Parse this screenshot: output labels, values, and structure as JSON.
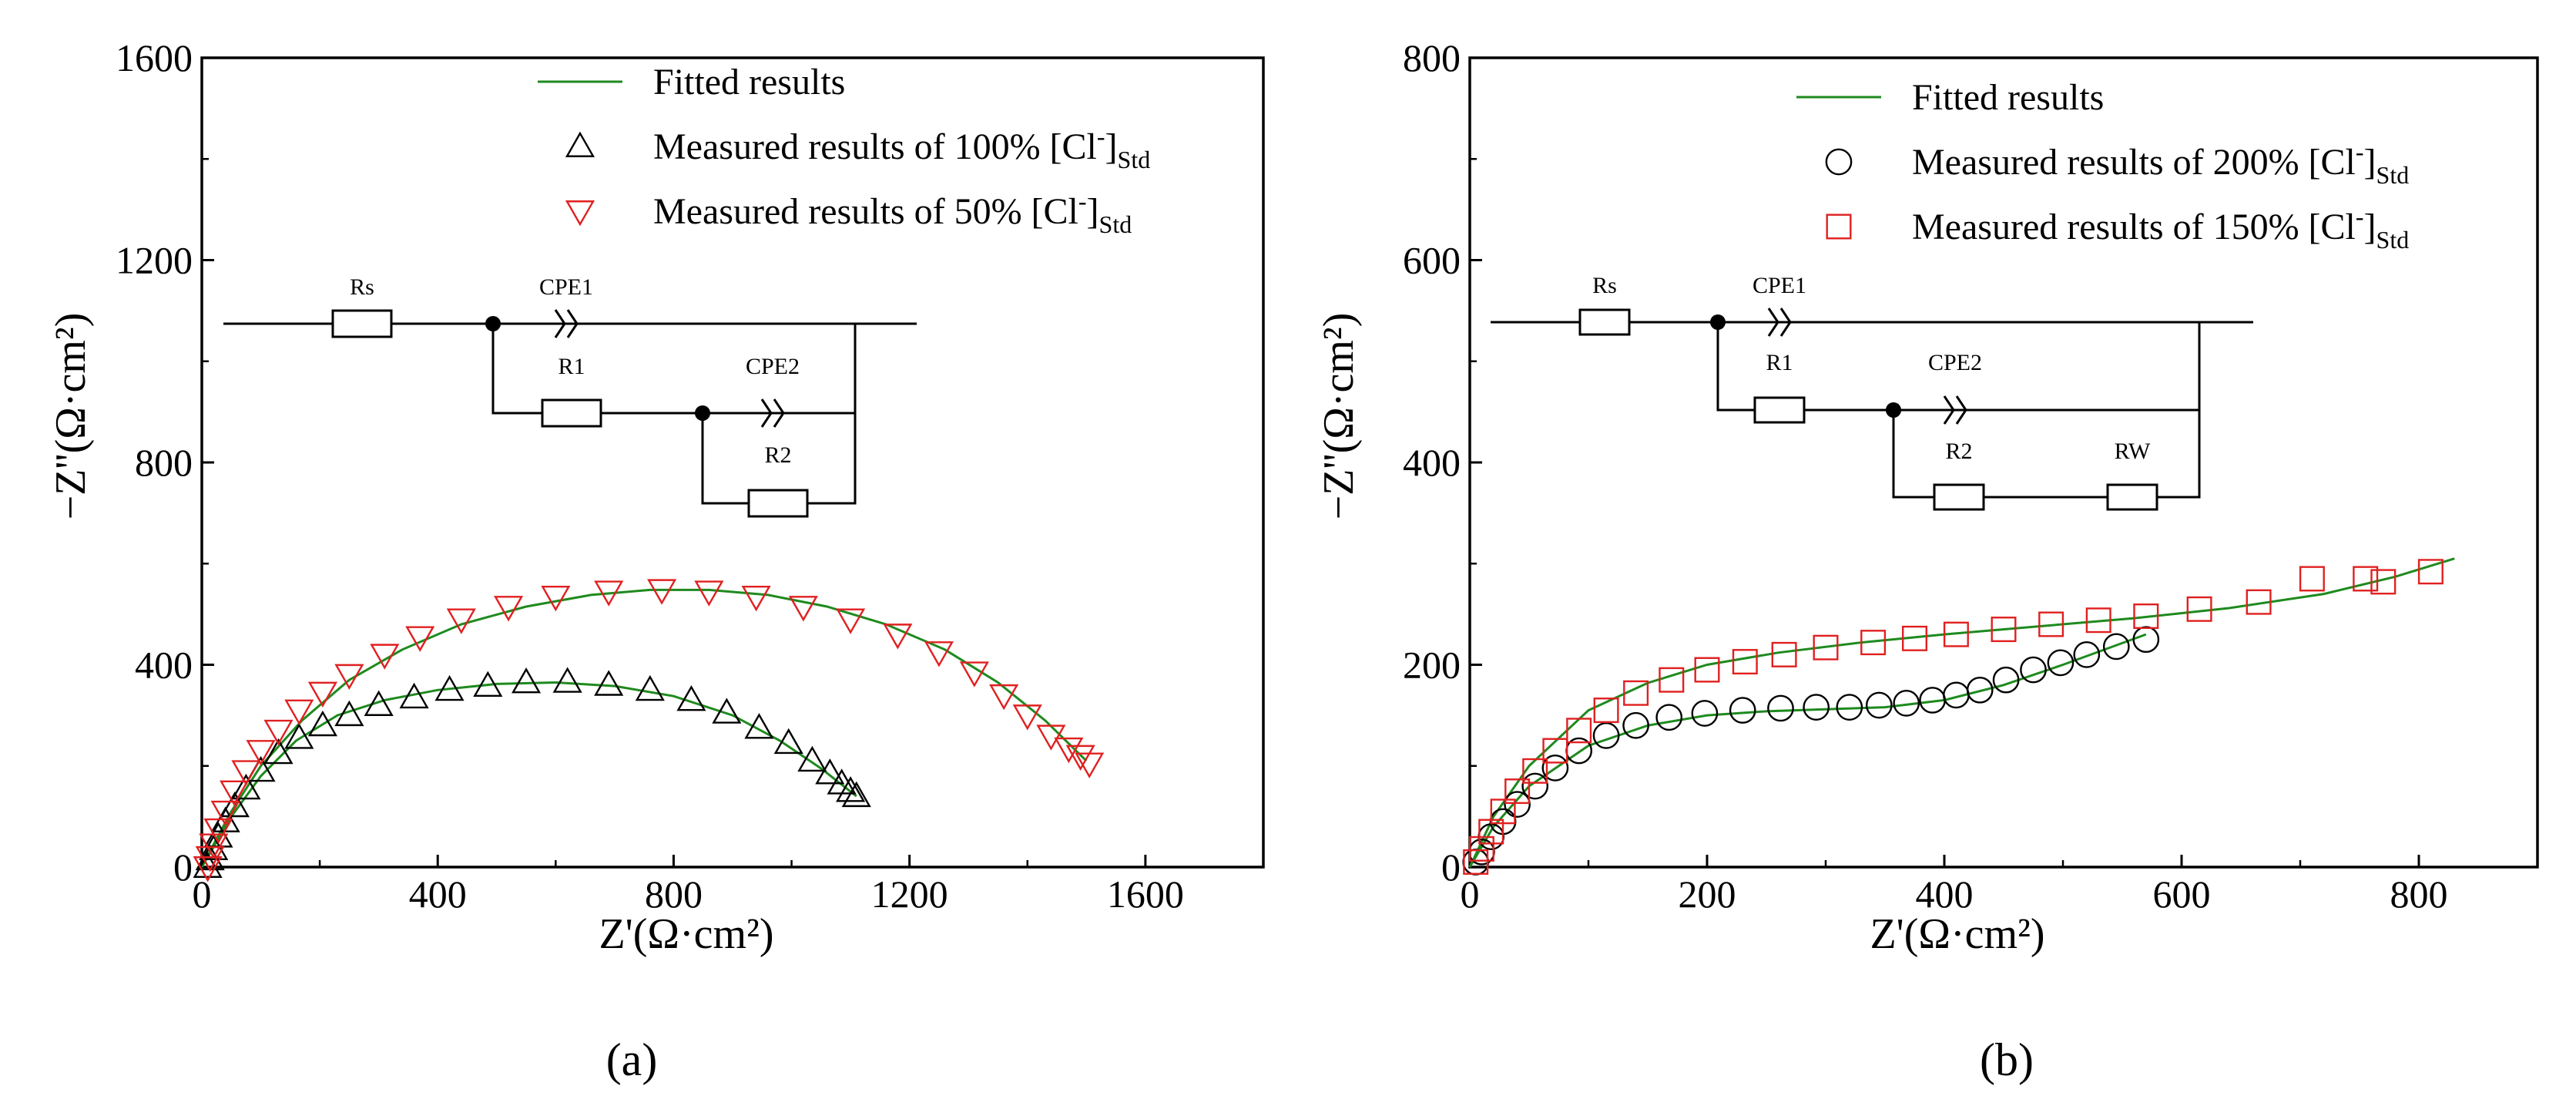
{
  "panels": [
    {
      "panel_label": "(a)",
      "legend": [
        {
          "label": "Fitted results",
          "sub": ""
        },
        {
          "label": "Measured results of 100% [Cl",
          "sup": "-",
          "tail": "]",
          "sub": "Std"
        },
        {
          "label": "Measured results of 50% [Cl",
          "sup": "-",
          "tail": "]",
          "sub": "Std"
        }
      ],
      "circuit": {
        "labels": [
          "Rs",
          "CPE1",
          "R1",
          "CPE2",
          "R2"
        ]
      }
    },
    {
      "panel_label": "(b)",
      "legend": [
        {
          "label": "Fitted results",
          "sub": ""
        },
        {
          "label": "Measured results of 200% [Cl",
          "sup": "-",
          "tail": "]",
          "sub": "Std"
        },
        {
          "label": "Measured results of 150% [Cl",
          "sup": "-",
          "tail": "]",
          "sub": "Std"
        }
      ],
      "circuit": {
        "labels": [
          "Rs",
          "CPE1",
          "R1",
          "CPE2",
          "R2",
          "RW"
        ]
      }
    }
  ],
  "chart_data": [
    {
      "type": "scatter",
      "xlabel": "Z'(Ω·cm²)",
      "ylabel": "−Z''(Ω·cm²)",
      "xlim": [
        0,
        1800
      ],
      "ylim": [
        0,
        1600
      ],
      "xticks": [
        0,
        400,
        800,
        1200,
        1600
      ],
      "yticks": [
        0,
        400,
        800,
        1200,
        1600
      ],
      "grid": false,
      "legend_position": "top-right",
      "colors": {
        "fit": "#1e8a1e",
        "series1": "#000000",
        "series2": "#e02020"
      },
      "series": [
        {
          "name": "Measured results of 100% [Cl-]Std",
          "marker": "triangle-up",
          "color": "#000000",
          "x": [
            10,
            14,
            20,
            28,
            40,
            56,
            75,
            100,
            130,
            165,
            205,
            250,
            300,
            360,
            420,
            485,
            550,
            620,
            690,
            760,
            830,
            890,
            945,
            995,
            1035,
            1065,
            1085,
            1100,
            1110
          ],
          "y": [
            0,
            15,
            35,
            60,
            90,
            120,
            155,
            190,
            225,
            255,
            280,
            300,
            320,
            335,
            350,
            358,
            365,
            366,
            360,
            350,
            330,
            305,
            275,
            245,
            210,
            185,
            165,
            150,
            140
          ]
        },
        {
          "name": "Measured results of 50% [Cl-]Std",
          "marker": "triangle-down",
          "color": "#e02020",
          "x": [
            10,
            14,
            20,
            28,
            40,
            55,
            75,
            100,
            130,
            165,
            205,
            250,
            310,
            370,
            440,
            520,
            600,
            690,
            780,
            860,
            940,
            1020,
            1100,
            1180,
            1250,
            1310,
            1360,
            1400,
            1440,
            1470,
            1490,
            1505
          ],
          "y": [
            0,
            20,
            45,
            75,
            110,
            150,
            190,
            230,
            270,
            310,
            345,
            380,
            420,
            455,
            490,
            515,
            535,
            545,
            548,
            545,
            535,
            515,
            490,
            460,
            425,
            385,
            340,
            300,
            260,
            235,
            220,
            205
          ]
        },
        {
          "name": "Fitted results",
          "role": "fit",
          "color": "#1e8a1e",
          "x": [
            0,
            20,
            50,
            100,
            160,
            230,
            310,
            400,
            500,
            600,
            700,
            800,
            900,
            980,
            1050,
            1110
          ],
          "y": [
            0,
            40,
            100,
            180,
            250,
            300,
            330,
            350,
            362,
            365,
            358,
            338,
            300,
            250,
            195,
            140
          ]
        },
        {
          "name": "Fitted results",
          "role": "fit",
          "color": "#1e8a1e",
          "x": [
            0,
            20,
            50,
            100,
            170,
            250,
            340,
            440,
            550,
            660,
            760,
            860,
            960,
            1060,
            1160,
            1260,
            1350,
            1430,
            1500
          ],
          "y": [
            0,
            45,
            110,
            200,
            290,
            370,
            430,
            480,
            515,
            538,
            548,
            548,
            538,
            515,
            480,
            430,
            365,
            290,
            210
          ]
        }
      ]
    },
    {
      "type": "scatter",
      "xlabel": "Z'(Ω·cm²)",
      "ylabel": "−Z''(Ω·cm²)",
      "xlim": [
        0,
        900
      ],
      "ylim": [
        0,
        800
      ],
      "xticks": [
        0,
        200,
        400,
        600,
        800
      ],
      "yticks": [
        0,
        200,
        400,
        600,
        800
      ],
      "grid": false,
      "legend_position": "top-right",
      "colors": {
        "fit": "#1e8a1e",
        "series1": "#000000",
        "series2": "#e02020"
      },
      "series": [
        {
          "name": "Measured results of 200% [Cl-]Std",
          "marker": "circle",
          "color": "#000000",
          "x": [
            5,
            10,
            18,
            28,
            40,
            55,
            72,
            92,
            115,
            140,
            168,
            198,
            230,
            262,
            292,
            320,
            345,
            368,
            390,
            410,
            430,
            452,
            475,
            498,
            520,
            545,
            570
          ],
          "y": [
            5,
            15,
            30,
            45,
            62,
            80,
            98,
            115,
            130,
            140,
            148,
            152,
            155,
            157,
            158,
            158,
            160,
            162,
            165,
            170,
            175,
            185,
            195,
            202,
            210,
            218,
            225
          ]
        },
        {
          "name": "Measured results of 150% [Cl-]Std",
          "marker": "square",
          "color": "#e02020",
          "x": [
            5,
            10,
            18,
            28,
            40,
            55,
            72,
            92,
            115,
            140,
            170,
            200,
            232,
            265,
            300,
            340,
            375,
            410,
            450,
            490,
            530,
            570,
            615,
            665,
            710,
            755,
            770,
            810
          ],
          "y": [
            5,
            18,
            35,
            55,
            75,
            95,
            115,
            135,
            155,
            172,
            185,
            195,
            203,
            210,
            217,
            222,
            226,
            230,
            235,
            240,
            244,
            248,
            255,
            262,
            285,
            285,
            282,
            292
          ]
        },
        {
          "name": "Fitted results",
          "role": "fit",
          "color": "#1e8a1e",
          "x": [
            0,
            20,
            50,
            100,
            150,
            200,
            250,
            300,
            350,
            400,
            450,
            500,
            570
          ],
          "y": [
            0,
            40,
            80,
            120,
            140,
            150,
            154,
            156,
            158,
            165,
            180,
            200,
            230
          ]
        },
        {
          "name": "Fitted results",
          "role": "fit",
          "color": "#1e8a1e",
          "x": [
            0,
            20,
            50,
            100,
            150,
            200,
            260,
            330,
            400,
            480,
            560,
            640,
            720,
            780,
            830
          ],
          "y": [
            0,
            50,
            100,
            155,
            182,
            200,
            212,
            222,
            230,
            238,
            246,
            256,
            270,
            287,
            305
          ]
        }
      ]
    }
  ]
}
